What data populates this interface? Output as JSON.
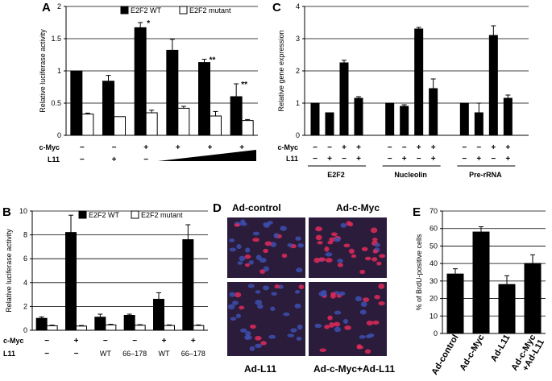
{
  "colors": {
    "wt": "#000000",
    "mut": "#ffffff",
    "cell_bg": "#2a1c3a",
    "nuclei_blue": "#3d4fb0",
    "nuclei_red": "#e02a5a"
  },
  "chart_data": [
    {
      "id": "A",
      "type": "bar",
      "label": "A",
      "ylabel": "Relative luciferase activity",
      "ylim": [
        0,
        2
      ],
      "yticks": [
        "0",
        "0.5",
        "1",
        "1.5",
        "2"
      ],
      "grid": true,
      "legend": [
        "E2F2 WT",
        "E2F2 mutant"
      ],
      "series": [
        {
          "name": "E2F2 WT",
          "values": [
            1.0,
            0.84,
            1.67,
            1.32,
            1.13,
            0.6
          ],
          "errors": [
            0,
            0.09,
            0.08,
            0.17,
            0.05,
            0.2
          ]
        },
        {
          "name": "E2F2 mutant",
          "values": [
            0.33,
            0.29,
            0.35,
            0.42,
            0.3,
            0.23
          ],
          "errors": [
            0.015,
            0,
            0.04,
            0.03,
            0.07,
            0.015
          ]
        }
      ],
      "annotations": [
        "",
        "",
        "*",
        "",
        "**",
        "**"
      ],
      "rows": [
        {
          "label": "c-Myc",
          "values": [
            "−",
            "−",
            "+",
            "+",
            "+",
            "+"
          ]
        },
        {
          "label": "L11",
          "values": [
            "−",
            "+",
            "−",
            "",
            "",
            ""
          ]
        }
      ],
      "wedge": true
    },
    {
      "id": "B",
      "type": "bar",
      "label": "B",
      "ylabel": "Relative luciferase activity",
      "ylim": [
        0,
        10
      ],
      "yticks": [
        "0",
        "2",
        "4",
        "6",
        "8",
        "10"
      ],
      "grid": true,
      "legend": [
        "E2F2 WT",
        "E2F2 mutant"
      ],
      "series": [
        {
          "name": "E2F2 WT",
          "values": [
            1.0,
            8.2,
            1.1,
            1.25,
            2.6,
            7.6
          ],
          "errors": [
            0.12,
            1.45,
            0.25,
            0.1,
            0.55,
            1.25
          ]
        },
        {
          "name": "E2F2 mutant",
          "values": [
            0.38,
            0.35,
            0.45,
            0.42,
            0.4,
            0.4
          ],
          "errors": [
            0.05,
            0.05,
            0.05,
            0.05,
            0.05,
            0.05
          ]
        }
      ],
      "rows": [
        {
          "label": "c-Myc",
          "values": [
            "−",
            "+",
            "−",
            "−",
            "+",
            "+"
          ]
        },
        {
          "label": "L11",
          "values": [
            "−",
            "−",
            "WT",
            "66–178",
            "WT",
            "66–178"
          ]
        }
      ]
    },
    {
      "id": "C",
      "type": "bar",
      "label": "C",
      "ylabel": "Relative gene expression",
      "ylim": [
        0,
        4
      ],
      "yticks": [
        "0",
        "1",
        "2",
        "3",
        "4"
      ],
      "grid": true,
      "groups": [
        {
          "name": "E2F2",
          "values": [
            1.0,
            0.7,
            2.25,
            1.15
          ],
          "errors": [
            0,
            0,
            0.08,
            0.05
          ]
        },
        {
          "name": "Nucleolin",
          "values": [
            1.0,
            0.9,
            3.3,
            1.45
          ],
          "errors": [
            0,
            0.05,
            0.05,
            0.3
          ]
        },
        {
          "name": "Pre-rRNA",
          "values": [
            1.0,
            0.7,
            3.1,
            1.15
          ],
          "errors": [
            0,
            0.3,
            0.3,
            0.1
          ]
        }
      ],
      "rows": [
        {
          "label": "c-Myc",
          "values": [
            "−",
            "−",
            "+",
            "+"
          ]
        },
        {
          "label": "L11",
          "values": [
            "−",
            "+",
            "−",
            "+"
          ]
        }
      ]
    },
    {
      "id": "E",
      "type": "bar",
      "label": "E",
      "ylabel": "% of BrdU-positive cells",
      "ylim": [
        0,
        70
      ],
      "yticks": [
        "0",
        "10",
        "20",
        "30",
        "40",
        "50",
        "60",
        "70"
      ],
      "grid": true,
      "categories": [
        "Ad-control",
        "Ad-c-Myc",
        "Ad-L11",
        "Ad-c-Myc\n+Ad-L11"
      ],
      "values": [
        34,
        58,
        28,
        40
      ],
      "errors": [
        3,
        3,
        5,
        5
      ]
    }
  ],
  "micrograph": {
    "label": "D",
    "tl": "Ad-control",
    "tr": "Ad-c-Myc",
    "bl": "Ad-L11",
    "br": "Ad-c-Myc+Ad-L11"
  }
}
